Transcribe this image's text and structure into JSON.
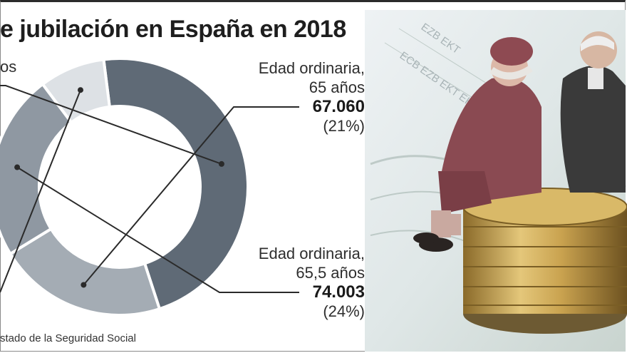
{
  "title": "e jubilación en España en 2018",
  "chart_data": {
    "type": "donut",
    "title": "e jubilación en España en 2018",
    "segments": [
      {
        "label": "",
        "value": 148000,
        "percent": 47,
        "color": "#5f6a76"
      },
      {
        "label": "Edad ordinaria, 65 años",
        "value": 67060,
        "percent": 21,
        "color": "#a4acb4"
      },
      {
        "label": "Edad ordinaria, 65,5 años",
        "value": 74003,
        "percent": 24,
        "color": "#8f98a2"
      },
      {
        "label": "",
        "value": 26000,
        "percent": 8,
        "color": "#dde1e5"
      }
    ]
  },
  "labels": {
    "top_left_partial": "os",
    "seg1": {
      "line1": "Edad ordinaria,",
      "line2": "65 años",
      "value": "67.060",
      "pct": "(21%)"
    },
    "seg2": {
      "line1": "Edad ordinaria,",
      "line2": "65,5 años",
      "value": "74.003",
      "pct": "(24%)"
    }
  },
  "source": "stado de la Seguridad Social",
  "colors": {
    "dark_segment": "#5f6a76",
    "leader_line": "#2a2a2a"
  }
}
